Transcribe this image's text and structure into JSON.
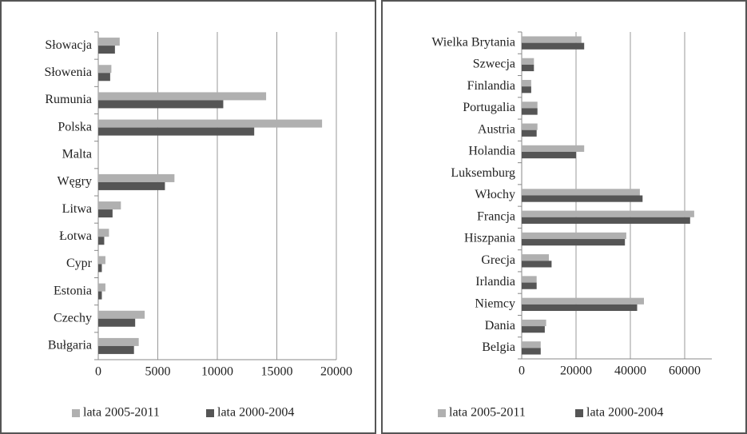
{
  "chart_data": [
    {
      "type": "hbar",
      "categories": [
        "Słowacja",
        "Słowenia",
        "Rumunia",
        "Polska",
        "Malta",
        "Węgry",
        "Litwa",
        "Łotwa",
        "Cypr",
        "Estonia",
        "Czechy",
        "Bułgaria"
      ],
      "series": [
        {
          "name": "lata 2005-2011",
          "color": "#b0b0b0",
          "values": [
            1800,
            1100,
            14100,
            18800,
            0,
            6400,
            1900,
            900,
            600,
            600,
            3900,
            3400
          ]
        },
        {
          "name": "lata 2000-2004",
          "color": "#555555",
          "values": [
            1400,
            1000,
            10500,
            13100,
            0,
            5600,
            1200,
            500,
            300,
            300,
            3100,
            3000
          ]
        }
      ],
      "xlim": [
        0,
        20000
      ],
      "xticks": [
        0,
        5000,
        10000,
        15000,
        20000
      ],
      "grid": true,
      "legend": "bottom"
    },
    {
      "type": "hbar",
      "categories": [
        "Wielka Brytania",
        "Szwecja",
        "Finlandia",
        "Portugalia",
        "Austria",
        "Holandia",
        "Luksemburg",
        "Włochy",
        "Francja",
        "Hiszpania",
        "Grecja",
        "Irlandia",
        "Niemcy",
        "Dania",
        "Belgia"
      ],
      "series": [
        {
          "name": "lata 2005-2011",
          "color": "#b0b0b0",
          "values": [
            22000,
            4500,
            3500,
            5800,
            5800,
            23000,
            0,
            43500,
            63500,
            38500,
            10000,
            5500,
            45000,
            9000,
            7000
          ]
        },
        {
          "name": "lata 2000-2004",
          "color": "#555555",
          "values": [
            23000,
            4500,
            3500,
            5800,
            5500,
            20000,
            0,
            44500,
            62000,
            38000,
            11000,
            5500,
            42500,
            8500,
            7000
          ]
        }
      ],
      "xlim": [
        0,
        70000
      ],
      "xticks": [
        0,
        20000,
        40000,
        60000
      ],
      "grid": true,
      "legend": "bottom"
    }
  ]
}
